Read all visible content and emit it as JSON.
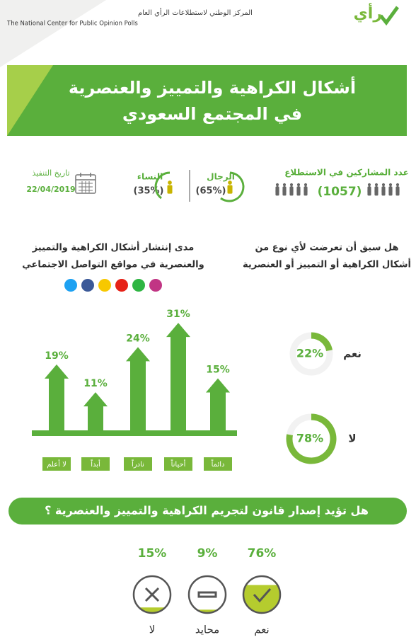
{
  "header": {
    "logo": "رأي",
    "org_ar": "المركز الوطني لاستطلاعات الرأي العام",
    "org_en": "The National Center for Public Opinion Polls"
  },
  "title": {
    "line1": "أشكال الكراهية والتمييز والعنصرية",
    "line2": "في المجتمع السعودي"
  },
  "stats": {
    "participants_label": "عدد المشاركين في الاستطلاع",
    "participants": "(1057)",
    "men_label": "الرجال",
    "men": "(65%)",
    "women_label": "النساء",
    "women": "(35%)",
    "date_label": "تاريخ التنفيذ",
    "date": "22/04/2019"
  },
  "chart_data": [
    {
      "type": "arrow-bar",
      "title_lines": [
        "مدى إنتشار أشكال الكراهية والتمييز",
        "والعنصرية في مواقع التواصل الاجتماعي"
      ],
      "categories": [
        "دائماً",
        "أحياناً",
        "نادراً",
        "أبداً",
        "لا أعلم"
      ],
      "values": [
        15,
        31,
        24,
        11,
        19
      ],
      "value_labels": [
        "15%",
        "31%",
        "24%",
        "11%",
        "19%"
      ],
      "color": "#5aaf3c"
    },
    {
      "type": "donut",
      "title_lines": [
        "هل سبق أن تعرضت لأي نوع من",
        "أشكال الكراهية أو التمييز أو العنصرية"
      ],
      "categories": [
        "نعم",
        "لا"
      ],
      "values": [
        22,
        78
      ],
      "value_labels": [
        "22%",
        "78%"
      ],
      "color": "#79b83a"
    },
    {
      "type": "fill-circle",
      "title": "هل تؤيد إصدار قانون لتجريم الكراهية والتمييز والعنصرية ؟",
      "categories": [
        "نعم",
        "محايد",
        "لا"
      ],
      "values": [
        76,
        9,
        15
      ],
      "value_labels": [
        "76%",
        "9%",
        "15%"
      ],
      "color": "#b5cc2e"
    }
  ]
}
